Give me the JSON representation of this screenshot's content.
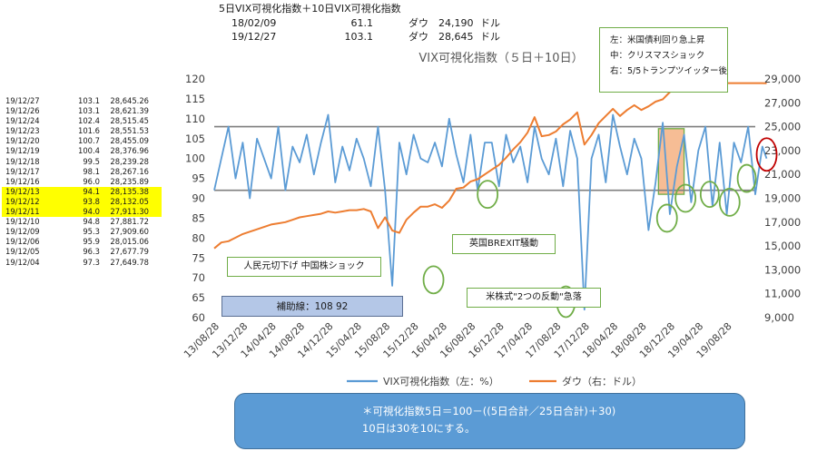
{
  "header": {
    "title": "5日VIX可視化指数＋10日VIX可視化指数",
    "rows": [
      {
        "date": "18/02/09",
        "vix": "61.1",
        "index": "ダウ",
        "value": "24,190",
        "unit": "ドル"
      },
      {
        "date": "19/12/27",
        "vix": "103.1",
        "index": "ダウ",
        "value": "28,645",
        "unit": "ドル"
      }
    ]
  },
  "side_table": [
    {
      "date": "19/12/27",
      "vix": "103.1",
      "dow": "28,645.26",
      "highlight": false
    },
    {
      "date": "19/12/26",
      "vix": "103.1",
      "dow": "28,621.39",
      "highlight": false
    },
    {
      "date": "19/12/24",
      "vix": "102.4",
      "dow": "28,515.45",
      "highlight": false
    },
    {
      "date": "19/12/23",
      "vix": "101.6",
      "dow": "28,551.53",
      "highlight": false
    },
    {
      "date": "19/12/20",
      "vix": "100.7",
      "dow": "28,455.09",
      "highlight": false
    },
    {
      "date": "19/12/19",
      "vix": "100.4",
      "dow": "28,376.96",
      "highlight": false
    },
    {
      "date": "19/12/18",
      "vix": "99.5",
      "dow": "28,239.28",
      "highlight": false
    },
    {
      "date": "19/12/17",
      "vix": "98.1",
      "dow": "28,267.16",
      "highlight": false
    },
    {
      "date": "19/12/16",
      "vix": "96.0",
      "dow": "28,235.89",
      "highlight": false
    },
    {
      "date": "19/12/13",
      "vix": "94.1",
      "dow": "28,135.38",
      "highlight": true
    },
    {
      "date": "19/12/12",
      "vix": "93.8",
      "dow": "28,132.05",
      "highlight": true
    },
    {
      "date": "19/12/11",
      "vix": "94.0",
      "dow": "27,911.30",
      "highlight": true
    },
    {
      "date": "19/12/10",
      "vix": "94.8",
      "dow": "27,881.72",
      "highlight": false
    },
    {
      "date": "19/12/09",
      "vix": "95.3",
      "dow": "27,909.60",
      "highlight": false
    },
    {
      "date": "19/12/06",
      "vix": "95.9",
      "dow": "28,015.06",
      "highlight": false
    },
    {
      "date": "19/12/05",
      "vix": "96.3",
      "dow": "27,677.79",
      "highlight": false
    },
    {
      "date": "19/12/04",
      "vix": "97.3",
      "dow": "27,649.78",
      "highlight": false
    }
  ],
  "legend_box": {
    "lines": [
      "左：米国債利回り急上昇",
      "中：クリスマスショック",
      "右：5/5トランプツイッター後"
    ]
  },
  "aux_label": "補助線：108  92",
  "annotations": {
    "china": "人民元切下げ  中国株ショック",
    "brexit": "英国BREXIT騒動",
    "reversal": "米株式\"2つの反動\"急落"
  },
  "note": {
    "line1": "＊可視化指数5日＝100－((5日合計／25日合計)＋30)",
    "line2": "10日は30を10にする。"
  },
  "colors": {
    "vix": "#5b9bd5",
    "dow": "#ed7d31",
    "aux_line": "#7f7f7f",
    "circle_green": "#70ad47",
    "circle_red": "#c00000",
    "shade": "#f4b183"
  },
  "chart_data": {
    "type": "line",
    "title": "VIX可視化指数（５日＋10日）",
    "x_tick_labels": [
      "13/08/28",
      "13/12/28",
      "14/04/28",
      "14/08/28",
      "14/12/28",
      "15/04/28",
      "15/08/28",
      "15/12/28",
      "16/04/28",
      "16/08/28",
      "16/12/28",
      "17/04/28",
      "17/08/28",
      "17/12/28",
      "18/04/28",
      "18/08/28",
      "18/12/28",
      "19/04/28",
      "19/08/28"
    ],
    "y_left": {
      "min": 60,
      "max": 120,
      "ticks": [
        60,
        65,
        70,
        75,
        80,
        85,
        90,
        95,
        100,
        105,
        110,
        115,
        120
      ]
    },
    "y_right": {
      "min": 9000,
      "max": 29000,
      "ticks": [
        9000,
        11000,
        13000,
        15000,
        17000,
        19000,
        21000,
        23000,
        25000,
        27000,
        29000
      ],
      "tick_labels": [
        "9,000",
        "11,000",
        "13,000",
        "15,000",
        "17,000",
        "19,000",
        "21,000",
        "23,000",
        "25,000",
        "27,000",
        "29,000"
      ]
    },
    "reference_lines": [
      108,
      92
    ],
    "x": [
      0,
      0.25,
      0.5,
      0.75,
      1,
      1.25,
      1.5,
      1.75,
      2,
      2.25,
      2.5,
      2.75,
      3,
      3.25,
      3.5,
      3.75,
      4,
      4.25,
      4.5,
      4.75,
      5,
      5.25,
      5.5,
      5.75,
      6,
      6.25,
      6.5,
      6.75,
      7,
      7.25,
      7.5,
      7.75,
      8,
      8.25,
      8.5,
      8.75,
      9,
      9.25,
      9.5,
      9.75,
      10,
      10.25,
      10.5,
      10.75,
      11,
      11.25,
      11.5,
      11.75,
      12,
      12.25,
      12.5,
      12.75,
      13,
      13.25,
      13.5,
      13.75,
      14,
      14.25,
      14.5,
      14.75,
      15,
      15.25,
      15.5,
      15.75,
      16,
      16.25,
      16.5,
      16.75,
      17,
      17.25,
      17.5,
      17.75,
      18,
      18.25,
      18.5,
      18.75,
      19,
      19.25,
      19.4
    ],
    "series": [
      {
        "name": "VIX可視化指数（左：%）",
        "axis": "left",
        "values": [
          92,
          100,
          108,
          95,
          104,
          90,
          105,
          100,
          95,
          108,
          92,
          103,
          99,
          106,
          96,
          104,
          111,
          94,
          103,
          97,
          105,
          100,
          93,
          108,
          92,
          68,
          104,
          96,
          106,
          100,
          99,
          104,
          98,
          110,
          101,
          94,
          106,
          92,
          104,
          104,
          93,
          106,
          99,
          103,
          94,
          108,
          100,
          96,
          105,
          93,
          107,
          100,
          62,
          100,
          106,
          94,
          111,
          103,
          96,
          105,
          100,
          82,
          94,
          109,
          86,
          98,
          106,
          89,
          102,
          108,
          88,
          104,
          86,
          104,
          99,
          108,
          91,
          103,
          100
        ]
      },
      {
        "name": "ダウ（右：ドル）",
        "axis": "right",
        "values": [
          14800,
          15300,
          15400,
          15700,
          16000,
          16200,
          16400,
          16600,
          16800,
          16900,
          17000,
          17200,
          17400,
          17500,
          17600,
          17700,
          17900,
          17800,
          17900,
          18000,
          18000,
          18100,
          17900,
          16500,
          17400,
          16300,
          16100,
          17200,
          17800,
          18300,
          18300,
          18500,
          18200,
          18800,
          19800,
          19900,
          20400,
          20600,
          21000,
          21400,
          21800,
          22400,
          23100,
          23700,
          24500,
          25800,
          24200,
          24300,
          24600,
          25200,
          25600,
          26200,
          23500,
          24300,
          25300,
          25900,
          26500,
          25900,
          26400,
          26800,
          26400,
          26700,
          27100,
          27300,
          27900,
          28200,
          28600,
          28650,
          28650,
          28650,
          28650,
          28650,
          28650,
          28650,
          28650,
          28650,
          28650,
          28650,
          28645
        ]
      }
    ],
    "legend": [
      "VIX可視化指数（左：%）",
      "ダウ（右：ドル）"
    ],
    "legend_position": "bottom",
    "grid": false
  }
}
